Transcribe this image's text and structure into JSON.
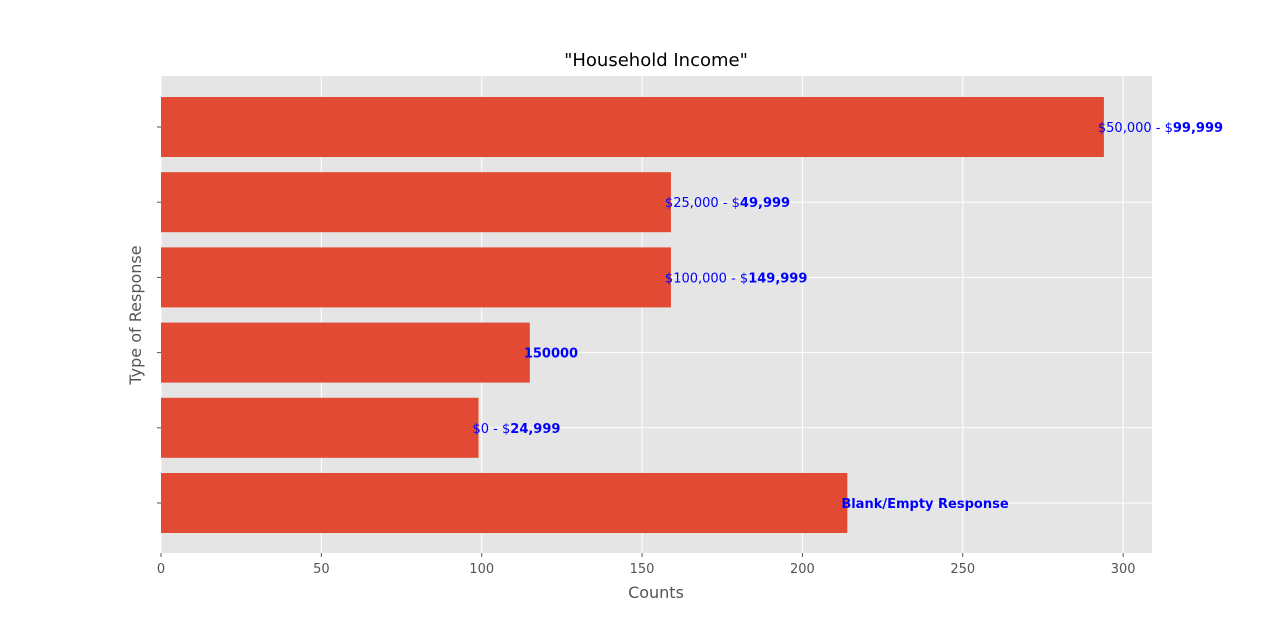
{
  "chart_data": {
    "type": "bar",
    "orientation": "horizontal",
    "title": "\"Household Income\"",
    "xlabel": "Counts",
    "ylabel": "Type of Response",
    "xlim": [
      0,
      309
    ],
    "xticks": [
      0,
      50,
      100,
      150,
      200,
      250,
      300
    ],
    "grid": true,
    "bar_color": "#E24A33",
    "label_color": "#0000FF",
    "bars": [
      {
        "label_plain": "$50,000 - $",
        "label_bold": "99,999",
        "value": 294
      },
      {
        "label_plain": "$25,000 - $",
        "label_bold": "49,999",
        "value": 159
      },
      {
        "label_plain": "$100,000 - $",
        "label_bold": "149,999",
        "value": 159
      },
      {
        "label_plain": "",
        "label_bold": "150000",
        "value": 115
      },
      {
        "label_plain": "$0 - $",
        "label_bold": "24,999",
        "value": 99
      },
      {
        "label_plain": "",
        "label_bold": "Blank/Empty Response",
        "value": 214
      }
    ]
  }
}
